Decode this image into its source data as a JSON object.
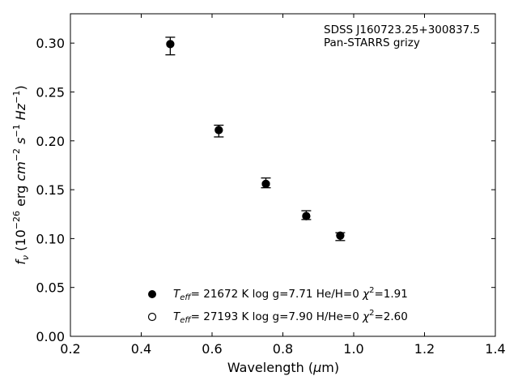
{
  "chart_data": {
    "type": "scatter",
    "xlabel": "Wavelength (μm)",
    "ylabel": "f_ν (10^-26 erg cm^-2 s^-1 Hz^-1)",
    "xlim": [
      0.2,
      1.4
    ],
    "ylim": [
      0.0,
      0.33
    ],
    "x_ticks": [
      "0.2",
      "0.4",
      "0.6",
      "0.8",
      "1.0",
      "1.2",
      "1.4"
    ],
    "y_ticks": [
      "0.00",
      "0.05",
      "0.10",
      "0.15",
      "0.20",
      "0.25",
      "0.30"
    ],
    "annotation": [
      "SDSS J160723.25+300837.5",
      "Pan-STARRS grizy"
    ],
    "observed": {
      "marker": "errorbar",
      "points": [
        {
          "x": 0.482,
          "y": 0.297,
          "yerr": 0.009
        },
        {
          "x": 0.619,
          "y": 0.21,
          "yerr": 0.006
        },
        {
          "x": 0.752,
          "y": 0.157,
          "yerr": 0.005
        },
        {
          "x": 0.866,
          "y": 0.124,
          "yerr": 0.0045
        },
        {
          "x": 0.962,
          "y": 0.102,
          "yerr": 0.004
        }
      ]
    },
    "series": [
      {
        "label": "T_eff= 21672 K  log g=7.71  He/H=0  χ²=1.91",
        "marker": "filled-circle",
        "x": [
          0.482,
          0.619,
          0.752,
          0.866,
          0.962
        ],
        "y": [
          0.299,
          0.211,
          0.156,
          0.123,
          0.103
        ]
      },
      {
        "label": "T_eff= 27193 K  log g=7.90  H/He=0  χ²=2.60",
        "marker": "open-circle",
        "x": [
          0.482,
          0.619,
          0.752,
          0.866,
          0.962
        ],
        "y": [
          0.299,
          0.211,
          0.156,
          0.123,
          0.103
        ]
      }
    ],
    "legend": {
      "placement": "lower-center",
      "entries": [
        {
          "teff": "21672",
          "logg": "7.71",
          "comp": "He/H=0",
          "chi2": "1.91",
          "marker": "filled-circle"
        },
        {
          "teff": "27193",
          "logg": "7.90",
          "comp": "H/He=0",
          "chi2": "2.60",
          "marker": "open-circle"
        }
      ]
    },
    "grid": false
  }
}
